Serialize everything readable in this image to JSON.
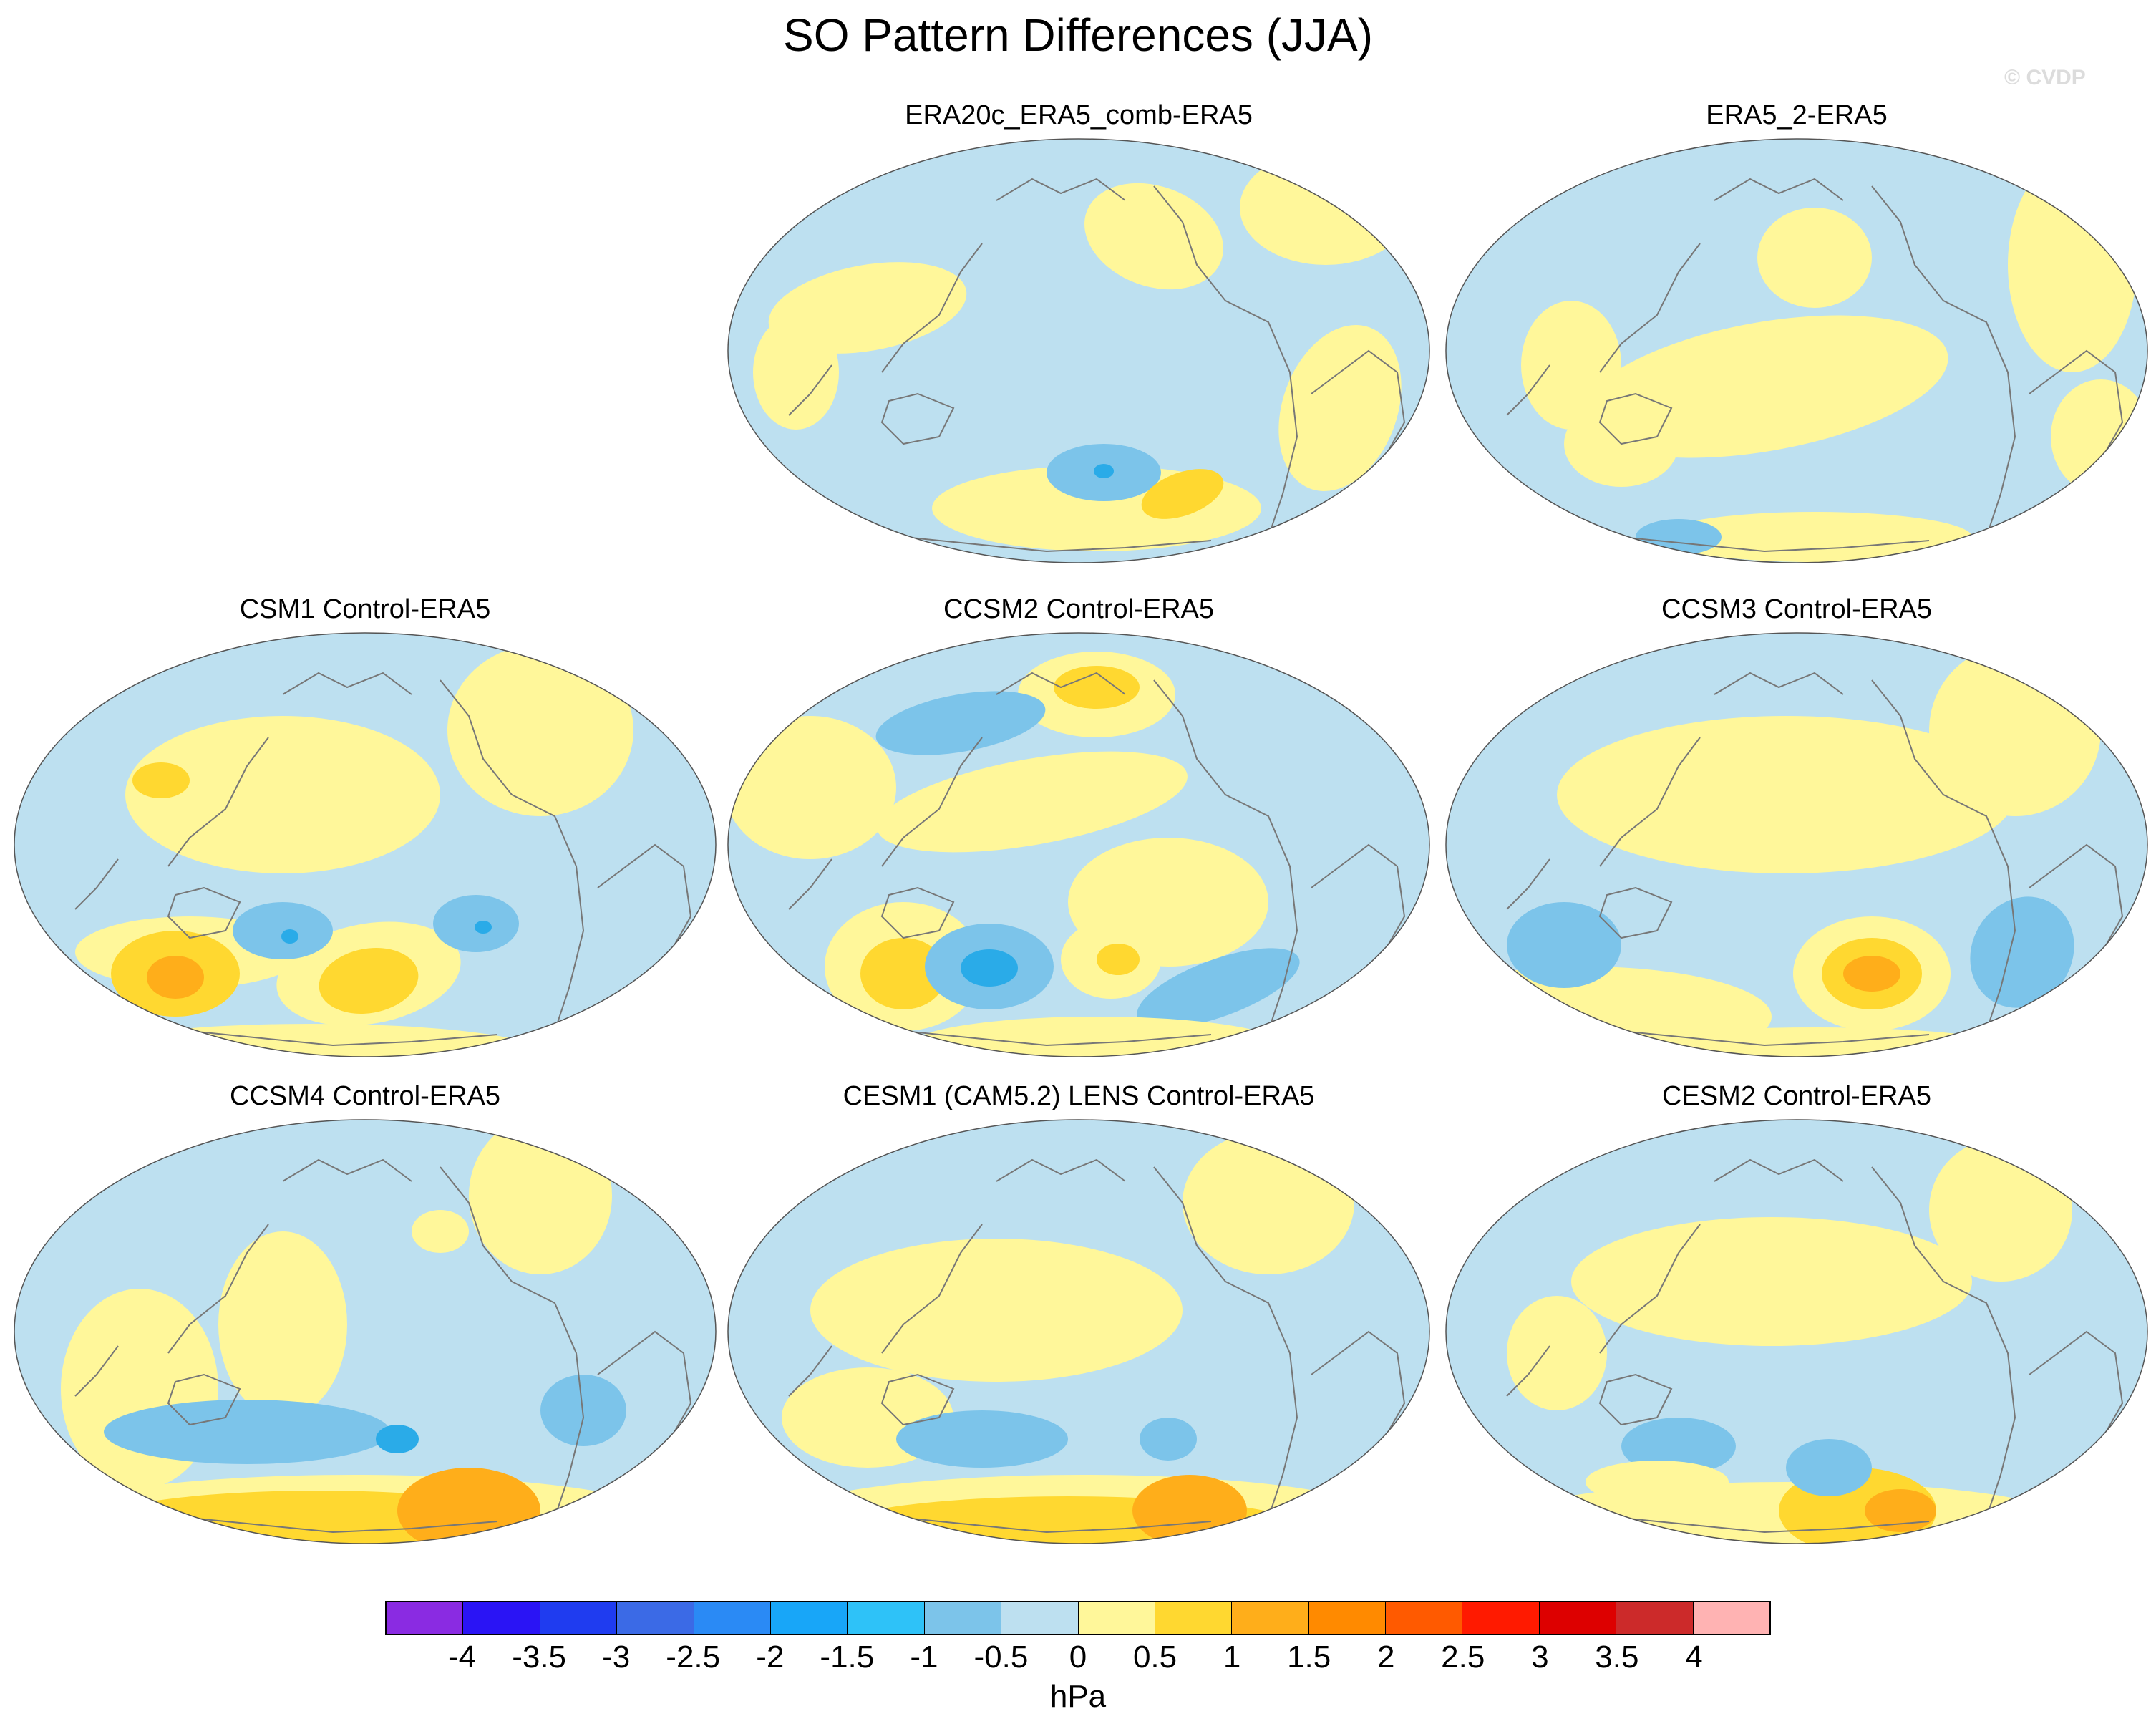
{
  "title": "SO Pattern Differences (JJA)",
  "watermark": "© CVDP",
  "colors": {
    "blue_light": "#bde0f0",
    "blue_mid": "#7cc4ea",
    "blue_strong": "#2aabe8",
    "blue_core": "#1676e6",
    "yellow_light": "#fff79a",
    "yellow_mid": "#ffd830",
    "orange": "#ffae1a",
    "coast": "#777777"
  },
  "panels": [
    {
      "title": "ERA20c_ERA5_comb-ERA5"
    },
    {
      "title": "ERA5_2-ERA5"
    },
    {
      "title": "CSM1 Control-ERA5"
    },
    {
      "title": "CCSM2 Control-ERA5"
    },
    {
      "title": "CCSM3 Control-ERA5"
    },
    {
      "title": "CCSM4 Control-ERA5"
    },
    {
      "title": "CESM1 (CAM5.2) LENS Control-ERA5"
    },
    {
      "title": "CESM2 Control-ERA5"
    }
  ],
  "colorbar": {
    "units": "hPa",
    "tick_labels": [
      "-4",
      "-3.5",
      "-3",
      "-2.5",
      "-2",
      "-1.5",
      "-1",
      "-0.5",
      "0",
      "0.5",
      "1",
      "1.5",
      "2",
      "2.5",
      "3",
      "3.5",
      "4"
    ],
    "colors": [
      "#8a2be2",
      "#2a14f5",
      "#1f3cf0",
      "#3b6ae6",
      "#2a8af5",
      "#18a6f8",
      "#2ec2f8",
      "#7cc4ea",
      "#bde0f0",
      "#fff79a",
      "#ffd830",
      "#ffae1a",
      "#ff8a00",
      "#ff5a00",
      "#ff1a00",
      "#dd0000",
      "#cc2a2a",
      "#ffb3b3"
    ]
  }
}
